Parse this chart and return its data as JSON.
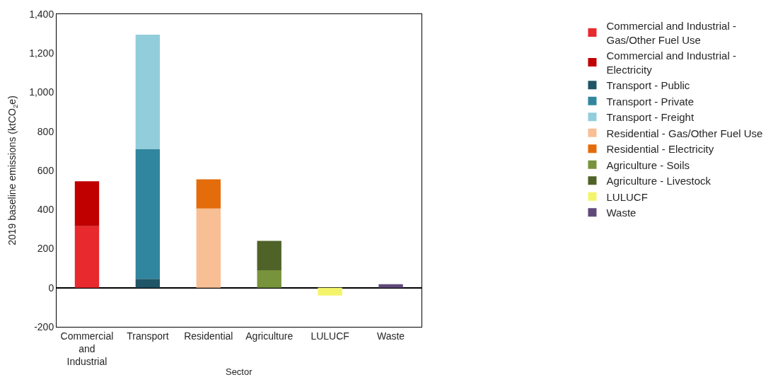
{
  "chart_data": {
    "type": "bar",
    "stacked": true,
    "xlabel": "Sector",
    "ylabel": "2019 baseline emissions (ktCO$_{2}$e)",
    "categories": [
      "Commercial and Industrial",
      "Transport",
      "Residential",
      "Agriculture",
      "LULUCF",
      "Waste"
    ],
    "ylim": [
      -200,
      1400
    ],
    "yticks": [
      {
        "value": -200,
        "label": "-200"
      },
      0,
      200,
      400,
      600,
      800,
      {
        "value": 1000,
        "label": "1,000"
      },
      {
        "value": 1200,
        "label": "1,200"
      },
      {
        "value": 1400,
        "label": "1,400"
      }
    ],
    "legend": "right",
    "series": [
      {
        "name": "Commercial and Industrial - Gas/Other Fuel Use",
        "color": "#e8292e",
        "values": [
          315,
          null,
          null,
          null,
          null,
          null
        ]
      },
      {
        "name": "Commercial and Industrial - Electricity",
        "color": "#c00000",
        "values": [
          230,
          null,
          null,
          null,
          null,
          null
        ]
      },
      {
        "name": "Transport - Public",
        "color": "#1f5566",
        "values": [
          null,
          45,
          null,
          null,
          null,
          null
        ]
      },
      {
        "name": "Transport - Private",
        "color": "#30869e",
        "values": [
          null,
          665,
          null,
          null,
          null,
          null
        ]
      },
      {
        "name": "Transport - Freight",
        "color": "#92cddc",
        "values": [
          null,
          585,
          null,
          null,
          null,
          null
        ]
      },
      {
        "name": "Residential - Gas/Other Fuel Use",
        "color": "#f8bf95",
        "values": [
          null,
          null,
          405,
          null,
          null,
          null
        ]
      },
      {
        "name": "Residential - Electricity",
        "color": "#e46c0a",
        "values": [
          null,
          null,
          150,
          null,
          null,
          null
        ]
      },
      {
        "name": "Agriculture - Soils",
        "color": "#77933c",
        "values": [
          null,
          null,
          null,
          90,
          null,
          null
        ]
      },
      {
        "name": "Agriculture - Livestock",
        "color": "#4f6228",
        "values": [
          null,
          null,
          null,
          150,
          null,
          null
        ]
      },
      {
        "name": "LULUCF",
        "color": "#f4f46a",
        "values": [
          null,
          null,
          null,
          null,
          -40,
          null
        ]
      },
      {
        "name": "Waste",
        "color": "#604a7b",
        "values": [
          null,
          null,
          null,
          null,
          null,
          18
        ]
      }
    ]
  }
}
